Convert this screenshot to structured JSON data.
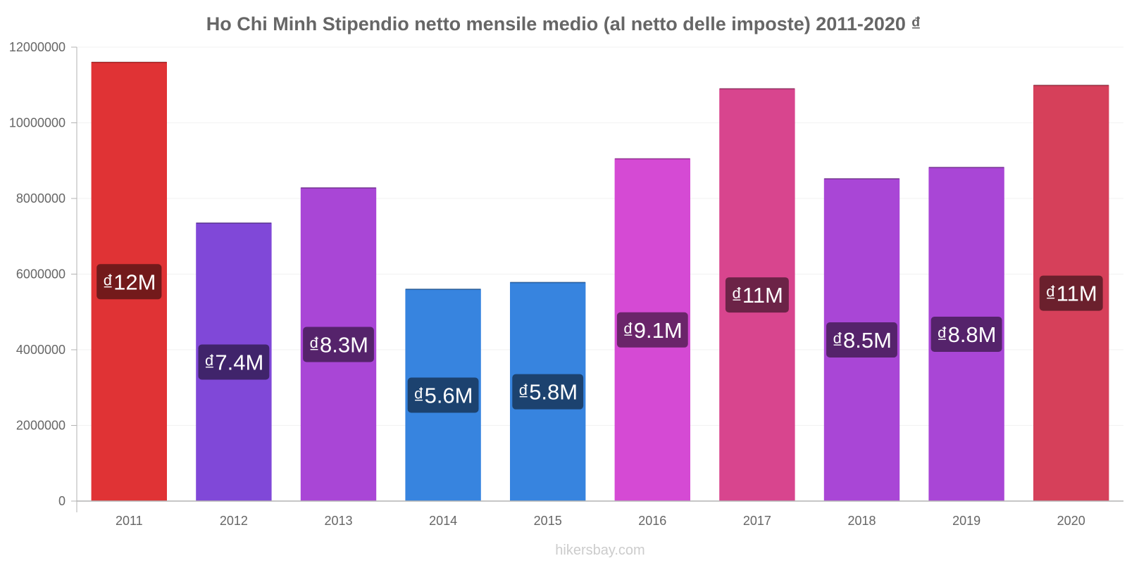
{
  "footer": "hikersbay.com",
  "chart_data": {
    "type": "bar",
    "title": "Ho Chi Minh Stipendio netto mensile medio (al netto delle imposte) 2011-2020 ₫",
    "xlabel": "",
    "ylabel": "",
    "ylim": [
      0,
      12000000
    ],
    "yticks": [
      "0",
      "2000000",
      "4000000",
      "6000000",
      "8000000",
      "10000000",
      "12000000"
    ],
    "grid": true,
    "categories": [
      "2011",
      "2012",
      "2013",
      "2014",
      "2015",
      "2016",
      "2017",
      "2018",
      "2019",
      "2020"
    ],
    "values": [
      11600000,
      7350000,
      8280000,
      5600000,
      5780000,
      9050000,
      10900000,
      8520000,
      8820000,
      10990000
    ],
    "data_labels": [
      "₫12M",
      "₫7.4M",
      "₫8.3M",
      "₫5.6M",
      "₫5.8M",
      "₫9.1M",
      "₫11M",
      "₫8.5M",
      "₫8.8M",
      "₫11M"
    ],
    "bar_colors": [
      "#e03335",
      "#8048d8",
      "#a946d6",
      "#3784df",
      "#3784df",
      "#d54ad4",
      "#d8458e",
      "#a946d6",
      "#a946d6",
      "#d6405a"
    ],
    "label_bg_colors": [
      "#731a1b",
      "#40246b",
      "#55236b",
      "#1c426f",
      "#1c426f",
      "#6a256a",
      "#6c2347",
      "#55236b",
      "#55236b",
      "#6b202d"
    ]
  }
}
